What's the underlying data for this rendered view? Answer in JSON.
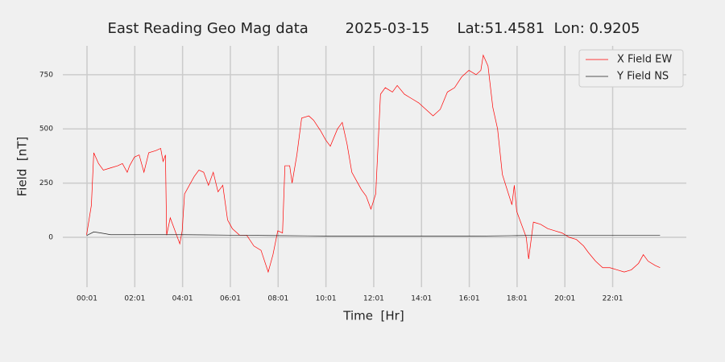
{
  "chart_data": {
    "type": "line",
    "title": "East Reading Geo Mag data        2025-03-15      Lat:51.4581  Lon: 0.9205",
    "x_label": "Time  [Hr]",
    "y_label": "Field  [nT]",
    "xlim": [
      -0.995,
      25.1
    ],
    "ylim": [
      -230,
      883
    ],
    "xticks": [
      {
        "value": 0.0167,
        "label": "00:01"
      },
      {
        "value": 2.0167,
        "label": "02:01"
      },
      {
        "value": 4.0167,
        "label": "04:01"
      },
      {
        "value": 6.0167,
        "label": "06:01"
      },
      {
        "value": 8.0167,
        "label": "08:01"
      },
      {
        "value": 10.0167,
        "label": "10:01"
      },
      {
        "value": 12.0167,
        "label": "12:01"
      },
      {
        "value": 14.0167,
        "label": "14:01"
      },
      {
        "value": 16.0167,
        "label": "16:01"
      },
      {
        "value": 18.0167,
        "label": "18:01"
      },
      {
        "value": 20.0167,
        "label": "20:01"
      },
      {
        "value": 22.0167,
        "label": "22:01"
      }
    ],
    "yticks": [
      0,
      250,
      500,
      750
    ],
    "grid": true,
    "legend": "upper right",
    "series": [
      {
        "name": "X Field EW",
        "color": "#ff0000",
        "x": [
          0.0,
          0.2,
          0.3,
          0.5,
          0.7,
          1.0,
          1.3,
          1.5,
          1.7,
          1.8,
          2.0,
          2.2,
          2.4,
          2.6,
          2.9,
          3.1,
          3.2,
          3.3,
          3.35,
          3.5,
          3.7,
          3.9,
          4.0,
          4.1,
          4.3,
          4.5,
          4.7,
          4.9,
          5.1,
          5.3,
          5.5,
          5.7,
          5.9,
          6.1,
          6.4,
          6.7,
          7.0,
          7.3,
          7.6,
          7.8,
          8.0,
          8.2,
          8.3,
          8.5,
          8.6,
          8.8,
          9.0,
          9.3,
          9.5,
          9.8,
          10.0,
          10.2,
          10.5,
          10.7,
          10.9,
          11.1,
          11.3,
          11.5,
          11.7,
          11.9,
          12.1,
          12.3,
          12.5,
          12.8,
          13.0,
          13.3,
          13.6,
          13.9,
          14.2,
          14.5,
          14.8,
          15.1,
          15.4,
          15.7,
          16.0,
          16.3,
          16.5,
          16.6,
          16.8,
          17.0,
          17.2,
          17.4,
          17.6,
          17.8,
          17.9,
          18.0,
          18.2,
          18.4,
          18.5,
          18.7,
          19.0,
          19.3,
          19.6,
          19.9,
          20.2,
          20.5,
          20.8,
          21.0,
          21.3,
          21.6,
          21.9,
          22.2,
          22.5,
          22.8,
          23.1,
          23.3,
          23.5,
          23.8,
          24.0
        ],
        "values": [
          12,
          148,
          390,
          340,
          310,
          320,
          330,
          340,
          300,
          330,
          370,
          380,
          300,
          390,
          400,
          410,
          350,
          380,
          10,
          90,
          30,
          -30,
          30,
          200,
          240,
          280,
          310,
          300,
          240,
          300,
          210,
          240,
          80,
          40,
          10,
          10,
          -40,
          -60,
          -160,
          -80,
          30,
          20,
          330,
          330,
          250,
          380,
          550,
          560,
          540,
          490,
          450,
          420,
          500,
          530,
          430,
          300,
          260,
          220,
          190,
          130,
          200,
          660,
          690,
          670,
          700,
          660,
          640,
          620,
          590,
          560,
          590,
          670,
          690,
          740,
          770,
          750,
          770,
          840,
          790,
          600,
          500,
          290,
          220,
          150,
          240,
          120,
          60,
          0,
          -100,
          70,
          60,
          40,
          30,
          20,
          0,
          -10,
          -40,
          -70,
          -110,
          -140,
          -140,
          -150,
          -160,
          -150,
          -120,
          -80,
          -110,
          -130,
          -140
        ]
      },
      {
        "name": "Y Field NS",
        "color": "#222222",
        "x": [
          0.0,
          0.3,
          0.6,
          1.0,
          2.0,
          4.0,
          6.0,
          8.0,
          10.0,
          12.0,
          14.0,
          16.0,
          18.0,
          19.0,
          22.0,
          24.0
        ],
        "values": [
          8,
          25,
          20,
          12,
          12,
          12,
          10,
          8,
          6,
          5,
          5,
          5,
          8,
          10,
          10,
          10
        ]
      }
    ]
  }
}
